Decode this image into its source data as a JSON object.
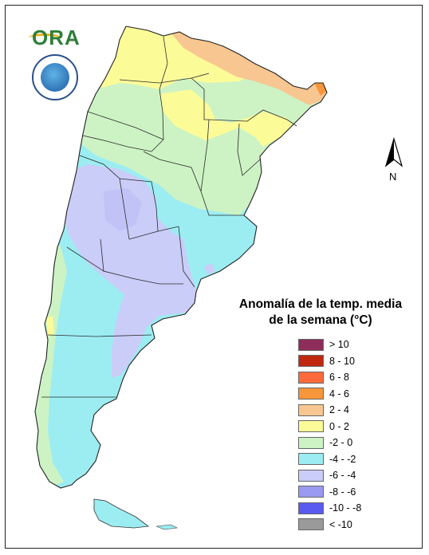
{
  "logo": {
    "text": "ORA"
  },
  "compass": {
    "label": "N"
  },
  "legend": {
    "title_line1": "Anomalía de la temp. media",
    "title_line2": "de la semana (°C)",
    "items": [
      {
        "label": "> 10",
        "color": "#8e2d5a"
      },
      {
        "label": "8 - 10",
        "color": "#c0280f"
      },
      {
        "label": "6 - 8",
        "color": "#ff6a3a"
      },
      {
        "label": "4 - 6",
        "color": "#f7963a"
      },
      {
        "label": "2 - 4",
        "color": "#f8c690"
      },
      {
        "label": "0 - 2",
        "color": "#fbfb98"
      },
      {
        "label": "-2 - 0",
        "color": "#cdf3c4"
      },
      {
        "label": "-4 - -2",
        "color": "#9cedf2"
      },
      {
        "label": "-6 - -4",
        "color": "#cacdf8"
      },
      {
        "label": "-8 - -6",
        "color": "#9a9af2"
      },
      {
        "label": "-10 - -8",
        "color": "#5a5af0"
      },
      {
        "label": "< -10",
        "color": "#9a9a9a"
      }
    ]
  },
  "map_colors": {
    "warm_2_4": "#f8c690",
    "warm_4_6": "#f7963a",
    "mild_0_2": "#fbfb98",
    "cool_m2_0": "#cdf3c4",
    "cool_m4_m2": "#9cedf2",
    "cold_m6_m4": "#cacdf8",
    "cold_m8_m6": "#b9bcf5"
  }
}
